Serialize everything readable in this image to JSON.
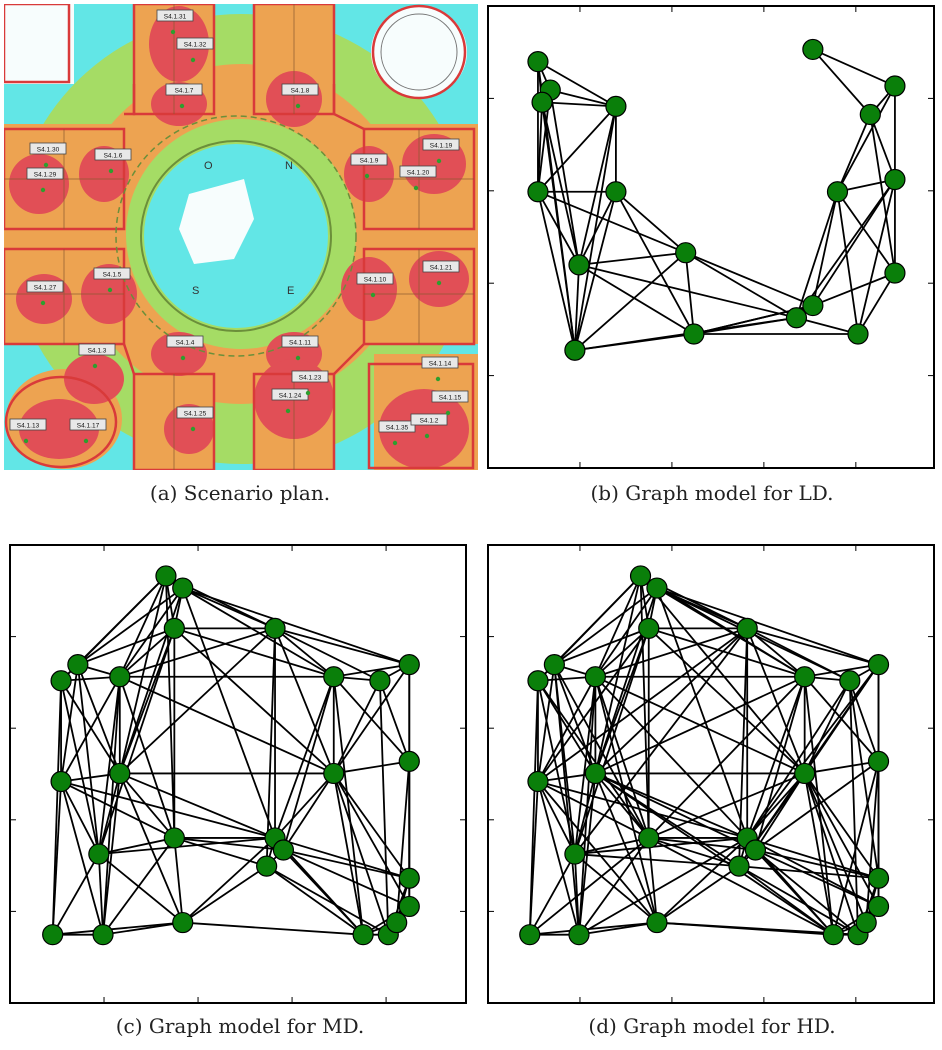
{
  "figure": {
    "captions": {
      "a": "(a) Scenario plan.",
      "b": "(b) Graph model for LD.",
      "c": "(c) Graph model for MD.",
      "d": "(d) Graph model for HD."
    }
  },
  "plan": {
    "room_labels": [
      "S4.1.31",
      "S4.1.32",
      "S4.1.7",
      "S4.1.8",
      "S4.1.30",
      "S4.1.6",
      "S4.1.29",
      "S4.1.9",
      "S4.1.19",
      "S4.1.20",
      "S4.1.27",
      "S4.1.5",
      "S4.1.10",
      "S4.1.21",
      "S4.1.3",
      "S4.1.4",
      "S4.1.11",
      "S4.1.23",
      "S4.1.24",
      "S4.1.14",
      "S4.1.15",
      "S4.1.13",
      "S4.1.17",
      "S4.1.25",
      "S4.1.35",
      "S4.1.2"
    ],
    "courtyard_letters": [
      "O",
      "N",
      "S",
      "E"
    ],
    "colors": {
      "strong": "#e8474f",
      "medium": "#f5a04a",
      "weak": "#a9dc5f",
      "low": "#62e6e6",
      "outline": "#d93a3a"
    }
  },
  "node_color": "#0a7f0a",
  "ld": {
    "nodes": [
      [
        0.13,
        0.15
      ],
      [
        0.1,
        0.08
      ],
      [
        0.11,
        0.18
      ],
      [
        0.1,
        0.4
      ],
      [
        0.29,
        0.19
      ],
      [
        0.29,
        0.4
      ],
      [
        0.2,
        0.58
      ],
      [
        0.19,
        0.79
      ],
      [
        0.46,
        0.55
      ],
      [
        0.48,
        0.75
      ],
      [
        0.73,
        0.71
      ],
      [
        0.77,
        0.68
      ],
      [
        0.77,
        0.05
      ],
      [
        0.97,
        0.14
      ],
      [
        0.91,
        0.21
      ],
      [
        0.83,
        0.4
      ],
      [
        0.97,
        0.37
      ],
      [
        0.97,
        0.6
      ],
      [
        0.88,
        0.75
      ]
    ],
    "edges": [
      [
        0,
        1
      ],
      [
        0,
        2
      ],
      [
        0,
        3
      ],
      [
        0,
        4
      ],
      [
        0,
        6
      ],
      [
        1,
        2
      ],
      [
        1,
        3
      ],
      [
        1,
        4
      ],
      [
        1,
        7
      ],
      [
        2,
        3
      ],
      [
        2,
        4
      ],
      [
        2,
        6
      ],
      [
        2,
        7
      ],
      [
        3,
        4
      ],
      [
        3,
        5
      ],
      [
        3,
        6
      ],
      [
        3,
        7
      ],
      [
        3,
        8
      ],
      [
        4,
        5
      ],
      [
        4,
        6
      ],
      [
        4,
        7
      ],
      [
        5,
        6
      ],
      [
        5,
        7
      ],
      [
        5,
        8
      ],
      [
        5,
        9
      ],
      [
        6,
        7
      ],
      [
        6,
        8
      ],
      [
        6,
        9
      ],
      [
        6,
        10
      ],
      [
        7,
        8
      ],
      [
        7,
        9
      ],
      [
        7,
        10
      ],
      [
        8,
        9
      ],
      [
        8,
        10
      ],
      [
        8,
        11
      ],
      [
        9,
        10
      ],
      [
        9,
        11
      ],
      [
        10,
        11
      ],
      [
        10,
        15
      ],
      [
        10,
        16
      ],
      [
        11,
        15
      ],
      [
        11,
        16
      ],
      [
        11,
        17
      ],
      [
        12,
        13
      ],
      [
        12,
        14
      ],
      [
        13,
        14
      ],
      [
        13,
        15
      ],
      [
        13,
        16
      ],
      [
        14,
        15
      ],
      [
        14,
        16
      ],
      [
        14,
        17
      ],
      [
        15,
        16
      ],
      [
        15,
        17
      ],
      [
        15,
        18
      ],
      [
        16,
        17
      ],
      [
        16,
        18
      ],
      [
        17,
        18
      ],
      [
        18,
        9
      ],
      [
        11,
        9
      ],
      [
        10,
        18
      ]
    ]
  },
  "dense": {
    "nodes": [
      [
        0.35,
        0.02
      ],
      [
        0.39,
        0.05
      ],
      [
        0.37,
        0.15
      ],
      [
        0.61,
        0.15
      ],
      [
        0.14,
        0.24
      ],
      [
        0.1,
        0.28
      ],
      [
        0.24,
        0.27
      ],
      [
        0.75,
        0.27
      ],
      [
        0.86,
        0.28
      ],
      [
        0.93,
        0.24
      ],
      [
        0.1,
        0.53
      ],
      [
        0.24,
        0.51
      ],
      [
        0.75,
        0.51
      ],
      [
        0.93,
        0.48
      ],
      [
        0.19,
        0.71
      ],
      [
        0.37,
        0.67
      ],
      [
        0.61,
        0.67
      ],
      [
        0.63,
        0.7
      ],
      [
        0.59,
        0.74
      ],
      [
        0.93,
        0.77
      ],
      [
        0.93,
        0.84
      ],
      [
        0.08,
        0.91
      ],
      [
        0.2,
        0.91
      ],
      [
        0.39,
        0.88
      ],
      [
        0.82,
        0.91
      ],
      [
        0.88,
        0.91
      ],
      [
        0.9,
        0.88
      ]
    ],
    "md_edges": [
      [
        0,
        1
      ],
      [
        0,
        2
      ],
      [
        0,
        3
      ],
      [
        0,
        4
      ],
      [
        0,
        5
      ],
      [
        0,
        6
      ],
      [
        0,
        11
      ],
      [
        0,
        15
      ],
      [
        1,
        2
      ],
      [
        1,
        3
      ],
      [
        1,
        6
      ],
      [
        1,
        7
      ],
      [
        1,
        9
      ],
      [
        1,
        11
      ],
      [
        1,
        16
      ],
      [
        2,
        3
      ],
      [
        2,
        4
      ],
      [
        2,
        6
      ],
      [
        2,
        7
      ],
      [
        2,
        11
      ],
      [
        2,
        14
      ],
      [
        2,
        15
      ],
      [
        3,
        6
      ],
      [
        3,
        7
      ],
      [
        3,
        8
      ],
      [
        3,
        9
      ],
      [
        3,
        12
      ],
      [
        3,
        16
      ],
      [
        3,
        18
      ],
      [
        4,
        5
      ],
      [
        4,
        6
      ],
      [
        4,
        10
      ],
      [
        4,
        11
      ],
      [
        4,
        14
      ],
      [
        5,
        6
      ],
      [
        5,
        10
      ],
      [
        5,
        14
      ],
      [
        5,
        21
      ],
      [
        6,
        7
      ],
      [
        6,
        10
      ],
      [
        6,
        11
      ],
      [
        6,
        14
      ],
      [
        6,
        15
      ],
      [
        6,
        22
      ],
      [
        7,
        8
      ],
      [
        7,
        9
      ],
      [
        7,
        12
      ],
      [
        7,
        13
      ],
      [
        7,
        16
      ],
      [
        7,
        17
      ],
      [
        7,
        24
      ],
      [
        8,
        9
      ],
      [
        8,
        12
      ],
      [
        8,
        13
      ],
      [
        8,
        25
      ],
      [
        9,
        13
      ],
      [
        9,
        19
      ],
      [
        10,
        11
      ],
      [
        10,
        14
      ],
      [
        10,
        21
      ],
      [
        10,
        22
      ],
      [
        10,
        15
      ],
      [
        11,
        12
      ],
      [
        11,
        14
      ],
      [
        11,
        15
      ],
      [
        11,
        16
      ],
      [
        11,
        22
      ],
      [
        11,
        23
      ],
      [
        12,
        13
      ],
      [
        12,
        16
      ],
      [
        12,
        17
      ],
      [
        12,
        19
      ],
      [
        12,
        20
      ],
      [
        12,
        24
      ],
      [
        12,
        25
      ],
      [
        13,
        19
      ],
      [
        13,
        20
      ],
      [
        13,
        26
      ],
      [
        14,
        15
      ],
      [
        14,
        21
      ],
      [
        14,
        22
      ],
      [
        14,
        23
      ],
      [
        14,
        16
      ],
      [
        15,
        16
      ],
      [
        15,
        17
      ],
      [
        15,
        22
      ],
      [
        15,
        23
      ],
      [
        15,
        18
      ],
      [
        16,
        17
      ],
      [
        16,
        18
      ],
      [
        16,
        23
      ],
      [
        16,
        24
      ],
      [
        16,
        19
      ],
      [
        17,
        18
      ],
      [
        17,
        19
      ],
      [
        17,
        20
      ],
      [
        17,
        24
      ],
      [
        18,
        23
      ],
      [
        18,
        24
      ],
      [
        18,
        25
      ],
      [
        19,
        20
      ],
      [
        19,
        26
      ],
      [
        19,
        25
      ],
      [
        20,
        26
      ],
      [
        20,
        25
      ],
      [
        21,
        22
      ],
      [
        21,
        23
      ],
      [
        22,
        23
      ],
      [
        23,
        24
      ],
      [
        24,
        25
      ],
      [
        25,
        26
      ],
      [
        24,
        26
      ],
      [
        20,
        24
      ],
      [
        1,
        4
      ],
      [
        3,
        11
      ],
      [
        6,
        12
      ],
      [
        2,
        12
      ],
      [
        10,
        16
      ],
      [
        5,
        11
      ],
      [
        9,
        12
      ]
    ],
    "hd_extra": [
      [
        0,
        7
      ],
      [
        0,
        12
      ],
      [
        1,
        8
      ],
      [
        2,
        10
      ],
      [
        3,
        10
      ],
      [
        3,
        14
      ],
      [
        4,
        15
      ],
      [
        4,
        22
      ],
      [
        5,
        15
      ],
      [
        6,
        16
      ],
      [
        6,
        23
      ],
      [
        7,
        11
      ],
      [
        7,
        15
      ],
      [
        8,
        16
      ],
      [
        8,
        19
      ],
      [
        9,
        16
      ],
      [
        10,
        23
      ],
      [
        11,
        17
      ],
      [
        11,
        18
      ],
      [
        11,
        24
      ],
      [
        12,
        15
      ],
      [
        12,
        18
      ],
      [
        12,
        26
      ],
      [
        13,
        17
      ],
      [
        13,
        24
      ],
      [
        14,
        18
      ],
      [
        15,
        24
      ],
      [
        16,
        20
      ],
      [
        17,
        25
      ],
      [
        18,
        19
      ],
      [
        21,
        15
      ],
      [
        22,
        16
      ],
      [
        23,
        25
      ],
      [
        9,
        18
      ]
    ]
  }
}
